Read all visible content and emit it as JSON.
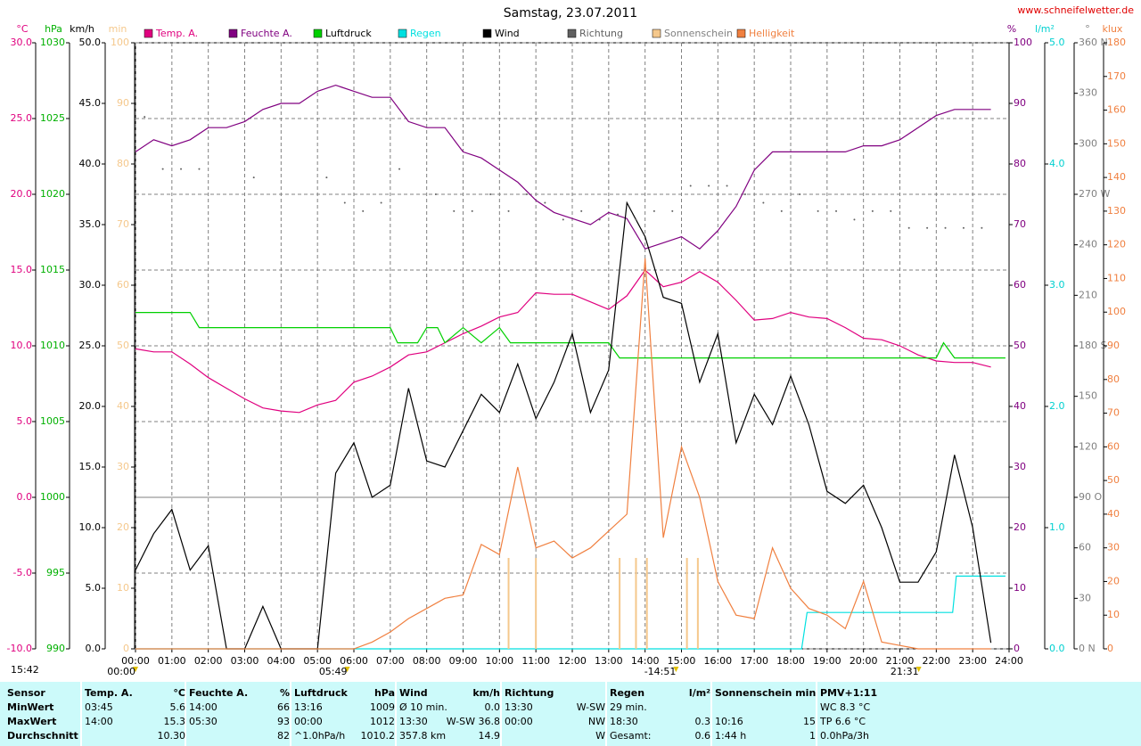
{
  "chart_data": {
    "type": "line",
    "title": "Samstag, 23.07.2011",
    "site": "www.schneifelwetter.de",
    "grid": true,
    "xlim": [
      0,
      24
    ],
    "xticks": [
      {
        "value": 0,
        "label": "00:00"
      },
      {
        "value": 1,
        "label": "01:00"
      },
      {
        "value": 2,
        "label": "02:00"
      },
      {
        "value": 3,
        "label": "03:00"
      },
      {
        "value": 4,
        "label": "04:00"
      },
      {
        "value": 5,
        "label": "05:00"
      },
      {
        "value": 6,
        "label": "06:00"
      },
      {
        "value": 7,
        "label": "07:00"
      },
      {
        "value": 8,
        "label": "08:00"
      },
      {
        "value": 9,
        "label": "09:00"
      },
      {
        "value": 10,
        "label": "10:00"
      },
      {
        "value": 11,
        "label": "11:00"
      },
      {
        "value": 12,
        "label": "12:00"
      },
      {
        "value": 13,
        "label": "13:00"
      },
      {
        "value": 14,
        "label": "14:00"
      },
      {
        "value": 15,
        "label": "15:00"
      },
      {
        "value": 16,
        "label": "16:00"
      },
      {
        "value": 17,
        "label": "17:00"
      },
      {
        "value": 18,
        "label": "18:00"
      },
      {
        "value": 19,
        "label": "19:00"
      },
      {
        "value": 20,
        "label": "20:00"
      },
      {
        "value": 21,
        "label": "21:00"
      },
      {
        "value": 22,
        "label": "22:00"
      },
      {
        "value": 23,
        "label": "23:00"
      },
      {
        "value": 24,
        "label": "24:00"
      }
    ],
    "x": [
      0,
      0.5,
      1,
      1.5,
      2,
      2.5,
      3,
      3.5,
      4,
      4.5,
      5,
      5.5,
      6,
      6.5,
      7,
      7.5,
      8,
      8.5,
      9,
      9.5,
      10,
      10.5,
      11,
      11.5,
      12,
      12.5,
      13,
      13.5,
      14,
      14.5,
      15,
      15.5,
      16,
      16.5,
      17,
      17.5,
      18,
      18.5,
      19,
      19.5,
      20,
      20.5,
      21,
      21.5,
      22,
      22.5,
      23,
      23.5
    ],
    "axes": [
      {
        "unit": "°C",
        "color": "#e0007f",
        "lim": [
          -10,
          30
        ],
        "ticks": [
          {
            "value": -10,
            "label": "-10.0"
          },
          {
            "value": -5,
            "label": "-5.0"
          },
          {
            "value": 0,
            "label": "0.0"
          },
          {
            "value": 5,
            "label": "5.0"
          },
          {
            "value": 10,
            "label": "10.0"
          },
          {
            "value": 15,
            "label": "15.0"
          },
          {
            "value": 20,
            "label": "20.0"
          },
          {
            "value": 25,
            "label": "25.0"
          },
          {
            "value": 30,
            "label": "30.0"
          }
        ]
      },
      {
        "unit": "hPa",
        "color": "#00b000",
        "lim": [
          990,
          1030
        ],
        "ticks": [
          990,
          995,
          1000,
          1005,
          1010,
          1015,
          1020,
          1025,
          1030
        ]
      },
      {
        "unit": "km/h",
        "color": "#000000",
        "lim": [
          0,
          50
        ],
        "ticks": [
          {
            "value": 0,
            "label": "0.0"
          },
          {
            "value": 5,
            "label": "5.0"
          },
          {
            "value": 10,
            "label": "10.0"
          },
          {
            "value": 15,
            "label": "15.0"
          },
          {
            "value": 20,
            "label": "20.0"
          },
          {
            "value": 25,
            "label": "25.0"
          },
          {
            "value": 30,
            "label": "30.0"
          },
          {
            "value": 35,
            "label": "35.0"
          },
          {
            "value": 40,
            "label": "40.0"
          },
          {
            "value": 45,
            "label": "45.0"
          },
          {
            "value": 50,
            "label": "50.0"
          }
        ]
      },
      {
        "unit": "min",
        "color": "#f5c88c",
        "lim": [
          0,
          100
        ],
        "ticks": [
          0,
          10,
          20,
          30,
          40,
          50,
          60,
          70,
          80,
          90,
          100
        ]
      },
      {
        "unit": "%",
        "color": "#800080",
        "lim": [
          0,
          100
        ],
        "ticks": [
          0,
          10,
          20,
          30,
          40,
          50,
          60,
          70,
          80,
          90,
          100
        ]
      },
      {
        "unit": "l/m²",
        "color": "#00d0d0",
        "lim": [
          0,
          5
        ],
        "ticks": [
          {
            "value": 0,
            "label": "0.0"
          },
          {
            "value": 1,
            "label": "1.0"
          },
          {
            "value": 2,
            "label": "2.0"
          },
          {
            "value": 3,
            "label": "3.0"
          },
          {
            "value": 4,
            "label": "4.0"
          },
          {
            "value": 5,
            "label": "5.0"
          }
        ]
      },
      {
        "unit": "°",
        "color": "#808080",
        "lim": [
          0,
          360
        ],
        "ticks": [
          {
            "value": 0,
            "label": "0 N"
          },
          {
            "value": 30,
            "label": "30"
          },
          {
            "value": 60,
            "label": "60"
          },
          {
            "value": 90,
            "label": "90 O"
          },
          {
            "value": 120,
            "label": "120"
          },
          {
            "value": 150,
            "label": "150"
          },
          {
            "value": 180,
            "label": "180 S"
          },
          {
            "value": 210,
            "label": "210"
          },
          {
            "value": 240,
            "label": "240"
          },
          {
            "value": 270,
            "label": "270 W"
          },
          {
            "value": 300,
            "label": "300"
          },
          {
            "value": 330,
            "label": "330"
          },
          {
            "value": 360,
            "label": "360 N"
          }
        ]
      },
      {
        "unit": "klux",
        "color": "#f08040",
        "lim": [
          0,
          180
        ],
        "ticks": [
          0,
          10,
          20,
          30,
          40,
          50,
          60,
          70,
          80,
          90,
          100,
          110,
          120,
          130,
          140,
          150,
          160,
          170,
          180
        ]
      }
    ],
    "series": [
      {
        "name": "Temp. A.",
        "color": "#e0007f",
        "axis": 0,
        "mark": "line",
        "values": [
          9.8,
          9.6,
          9.6,
          8.8,
          7.9,
          7.2,
          6.5,
          5.9,
          5.7,
          5.6,
          6.1,
          6.4,
          7.6,
          8.0,
          8.6,
          9.4,
          9.6,
          10.2,
          10.8,
          11.3,
          11.9,
          12.2,
          13.5,
          13.4,
          13.4,
          12.9,
          12.4,
          13.3,
          15.0,
          13.9,
          14.2,
          14.9,
          14.2,
          13.0,
          11.7,
          11.8,
          12.2,
          11.9,
          11.8,
          11.2,
          10.5,
          10.4,
          10.0,
          9.4,
          9.0,
          8.9,
          8.9,
          8.6
        ]
      },
      {
        "name": "Feuchte A.",
        "color": "#800080",
        "axis": 4,
        "mark": "line",
        "values": [
          82,
          84,
          83,
          84,
          86,
          86,
          87,
          89,
          90,
          90,
          92,
          93,
          92,
          91,
          91,
          87,
          86,
          86,
          82,
          81,
          79,
          77,
          74,
          72,
          71,
          70,
          72,
          71,
          66,
          67,
          68,
          66,
          69,
          73,
          79,
          82,
          82,
          82,
          82,
          82,
          83,
          83,
          84,
          86,
          88,
          89,
          89,
          89
        ]
      },
      {
        "name": "Luftdruck",
        "color": "#00d000",
        "axis": 1,
        "mark": "line",
        "x": [
          0,
          1.5,
          1.75,
          7,
          7.2,
          7.75,
          8,
          8.3,
          8.5,
          9,
          9.5,
          10,
          10.3,
          13,
          13.3,
          22,
          22.2,
          22.5,
          23.9
        ],
        "values": [
          1012.2,
          1012.2,
          1011.2,
          1011.2,
          1010.2,
          1010.2,
          1011.2,
          1011.2,
          1010.2,
          1011.2,
          1010.2,
          1011.2,
          1010.2,
          1010.2,
          1009.2,
          1009.2,
          1010.2,
          1009.2,
          1009.2
        ]
      },
      {
        "name": "Regen",
        "color": "#00e0e0",
        "axis": 5,
        "mark": "line",
        "x": [
          0,
          18.3,
          18.45,
          22.45,
          22.55,
          23.9
        ],
        "values": [
          0,
          0,
          0.3,
          0.3,
          0.6,
          0.6
        ]
      },
      {
        "name": "Wind",
        "color": "#000000",
        "axis": 2,
        "mark": "line",
        "values": [
          6.5,
          9.5,
          11.5,
          6.5,
          8.5,
          0,
          0,
          3.5,
          0,
          0,
          0,
          14.5,
          17,
          12.5,
          13.5,
          21.5,
          15.5,
          15,
          18,
          21,
          19.5,
          23.5,
          19,
          22,
          26,
          19.5,
          23,
          36.8,
          34,
          29,
          28.5,
          22,
          26,
          17,
          21,
          18.5,
          22.5,
          18.5,
          13,
          12,
          13.5,
          10,
          5.5,
          5.5,
          8,
          16,
          10,
          0.5
        ]
      },
      {
        "name": "Richtung",
        "color": "#606060",
        "axis": 6,
        "mark": "dot",
        "x": [
          0.25,
          0.75,
          1.25,
          1.75,
          3.25,
          5.25,
          5.75,
          6.25,
          6.75,
          7.25,
          8.25,
          8.75,
          9.25,
          9.75,
          10.25,
          10.75,
          11.25,
          11.75,
          12.25,
          12.75,
          13.25,
          13.75,
          14.25,
          14.75,
          15.25,
          15.75,
          16.25,
          16.75,
          17.25,
          17.75,
          18.25,
          18.75,
          19.25,
          19.75,
          20.25,
          20.75,
          21.25,
          21.75,
          22.25,
          22.75,
          23.25
        ],
        "values": [
          316,
          285,
          285,
          285,
          280,
          280,
          265,
          260,
          265,
          285,
          270,
          260,
          260,
          270,
          260,
          270,
          265,
          255,
          260,
          255,
          258,
          255,
          260,
          260,
          275,
          275,
          275,
          270,
          265,
          260,
          270,
          260,
          260,
          255,
          260,
          260,
          250,
          250,
          250,
          250,
          250
        ]
      },
      {
        "name": "Sonnenschein",
        "color": "#f5c88c",
        "axis": 3,
        "mark": "bar",
        "x": [
          10.25,
          11,
          13.3,
          13.75,
          14.05,
          15.15,
          15.45
        ],
        "values": [
          15,
          15,
          15,
          15,
          15,
          15,
          15
        ]
      },
      {
        "name": "Helligkeit",
        "color": "#f08040",
        "axis": 7,
        "mark": "line",
        "values": [
          0,
          0,
          0,
          0,
          0,
          0,
          0,
          0,
          0,
          0,
          0,
          0,
          0,
          2,
          5,
          9,
          12,
          15,
          16,
          31,
          28,
          54,
          30,
          32,
          27,
          30,
          35,
          40,
          116,
          33,
          60,
          45,
          20,
          10,
          9,
          30,
          18,
          12,
          10,
          6,
          20,
          2,
          1,
          0,
          0,
          0,
          0,
          0
        ]
      }
    ],
    "annotations": [
      {
        "text": "00:00",
        "x": 0
      },
      {
        "text": "05:49",
        "x": 5.817
      },
      {
        "text": "-14:51",
        "x": 14.85
      },
      {
        "text": "21:31",
        "x": 21.517
      }
    ],
    "corner_note": "15:42"
  },
  "table": {
    "header": [
      {
        "left": "Sensor"
      },
      {
        "left": "Temp. A.",
        "right": "°C"
      },
      {
        "left": "Feuchte A.",
        "right": "%"
      },
      {
        "left": "Luftdruck",
        "right": "hPa"
      },
      {
        "left": "Wind",
        "right": "km/h"
      },
      {
        "left": "Richtung"
      },
      {
        "left": "Regen",
        "right": "l/m²"
      },
      {
        "left": "Sonnenschein min"
      },
      {
        "left": "PMV+1:11"
      }
    ],
    "rows": [
      [
        {
          "left": "MinWert"
        },
        {
          "left": "03:45",
          "right": "5.6"
        },
        {
          "left": "14:00",
          "right": "66"
        },
        {
          "left": "13:16",
          "right": "1009"
        },
        {
          "left": "Ø 10 min.",
          "right": "0.0"
        },
        {
          "left": "13:30",
          "right": "W-SW"
        },
        {
          "left": "29 min."
        },
        {},
        {
          "left": "WC 8.3 °C"
        }
      ],
      [
        {
          "left": "MaxWert"
        },
        {
          "left": "14:00",
          "right": "15.3"
        },
        {
          "left": "05:30",
          "right": "93"
        },
        {
          "left": "00:00",
          "right": "1012"
        },
        {
          "left": "13:30",
          "right": "W-SW 36.8"
        },
        {
          "left": "00:00",
          "right": "NW"
        },
        {
          "left": "18:30",
          "right": "0.3"
        },
        {
          "left": "10:16",
          "right": "15"
        },
        {
          "left": "TP 6.6 °C"
        }
      ],
      [
        {
          "left": "Durchschnitt"
        },
        {
          "right": "10.30"
        },
        {
          "right": "82"
        },
        {
          "left": "^1.0hPa/h",
          "right": "1010.2"
        },
        {
          "left": "357.8 km",
          "right": "14.9"
        },
        {
          "right": "W"
        },
        {
          "left": "Gesamt:",
          "right": "0.6"
        },
        {
          "left": "1:44 h",
          "right": "1"
        },
        {
          "left": "0.0hPa/3h"
        }
      ]
    ]
  }
}
